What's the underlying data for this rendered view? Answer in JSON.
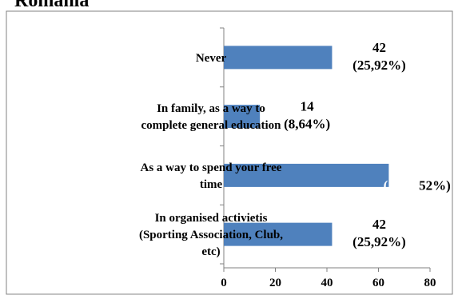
{
  "title": "Romania",
  "chart_data": {
    "type": "bar",
    "orientation": "horizontal",
    "categories": [
      [
        "Never"
      ],
      [
        "In family, as a way to",
        "complete general education"
      ],
      [
        "As a way to spend your free",
        "time"
      ],
      [
        "In organised activietis",
        "(Sporting Association, Club,",
        "etc)"
      ]
    ],
    "values": [
      42,
      14,
      64,
      42
    ],
    "data_labels": [
      [
        "42",
        "(25,92%)"
      ],
      [
        "14",
        "(8,64%)"
      ],
      [
        "64",
        "(39,52%)"
      ],
      [
        "42",
        "(25,92%)"
      ]
    ],
    "visible_data_labels": [
      [
        "42",
        "(25,92%)"
      ],
      [
        "14",
        "(8,64%)"
      ],
      [
        "52%)"
      ],
      [
        "42",
        "(25,92%)"
      ]
    ],
    "xlim": [
      0,
      80
    ],
    "xticks": [
      "0",
      "20",
      "40",
      "60",
      "80"
    ],
    "grid": false,
    "bar_color": "#4F81BD"
  }
}
